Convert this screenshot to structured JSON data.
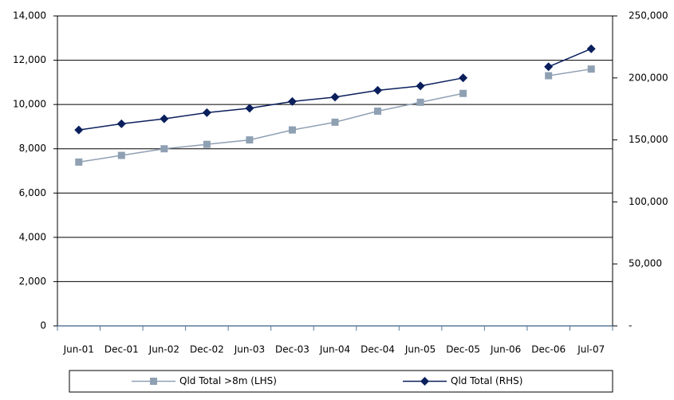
{
  "chart_data": {
    "type": "line",
    "categories": [
      "Jun-01",
      "Dec-01",
      "Jun-02",
      "Dec-02",
      "Jun-03",
      "Dec-03",
      "Jun-04",
      "Dec-04",
      "Jun-05",
      "Dec-05",
      "Jun-06",
      "Dec-06",
      "Jul-07"
    ],
    "series": [
      {
        "name": "Qld Total >8m (LHS)",
        "color": "#8fa0b3",
        "marker": "square",
        "values": [
          7400,
          7700,
          8000,
          8200,
          8400,
          8850,
          9200,
          9700,
          10100,
          10500,
          null,
          11300,
          11600
        ]
      },
      {
        "name": "Qld Total (RHS)",
        "color": "#0a1f5c",
        "marker": "diamond",
        "axis": "y2",
        "values": [
          158000,
          163000,
          167000,
          172000,
          175500,
          181000,
          184500,
          190000,
          193500,
          200000,
          null,
          209000,
          223500
        ]
      }
    ],
    "ylim": [
      0,
      14000
    ],
    "yticks": [
      0,
      {
        "value": 2000,
        "label": "2,000"
      },
      {
        "value": 4000,
        "label": "4,000"
      },
      {
        "value": 6000,
        "label": "6,000"
      },
      {
        "value": 8000,
        "label": "8,000"
      },
      {
        "value": 10000,
        "label": "10,000"
      },
      {
        "value": 12000,
        "label": "12,000"
      },
      {
        "value": 14000,
        "label": "14,000"
      }
    ],
    "y2lim": [
      0,
      250000
    ],
    "y2ticks": [
      {
        "value": 0,
        "label": "-"
      },
      {
        "value": 50000,
        "label": "50,000"
      },
      {
        "value": 100000,
        "label": "100,000"
      },
      {
        "value": 150000,
        "label": "150,000"
      },
      {
        "value": 200000,
        "label": "200,000"
      },
      {
        "value": 250000,
        "label": "250,000"
      }
    ],
    "grid": true,
    "legend": "bottom"
  }
}
